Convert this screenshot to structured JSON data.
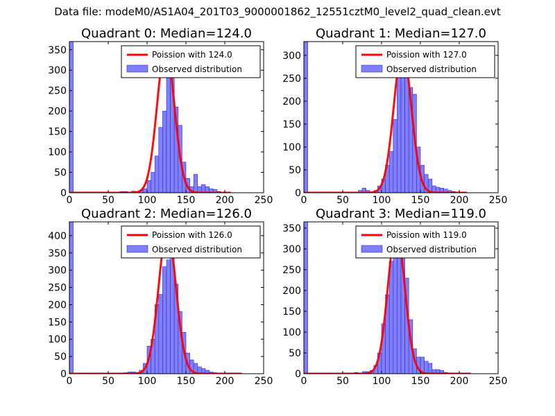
{
  "suptitle": "Data file: modeM0/AS1A04_201T03_9000001862_12551cztM0_level2_quad_clean.evt",
  "colors": {
    "bar_fill": "#8080ff",
    "bar_edge": "#2b2bcc",
    "curve": "#ff0000",
    "frame": "#000000"
  },
  "chart_data": [
    {
      "type": "bar",
      "title": "Quadrant 0: Median=124.0",
      "xlim": [
        0,
        250
      ],
      "ylim": [
        0,
        370
      ],
      "xticks": [
        0,
        50,
        100,
        150,
        200,
        250
      ],
      "yticks": [
        0,
        50,
        100,
        150,
        200,
        250,
        300,
        350
      ],
      "legend_placement": "top-right",
      "legend": [
        "Poission with 124.0",
        "Observed distribution"
      ],
      "curve": {
        "name": "Poission with 124.0",
        "mean": 124.0,
        "peak": 355,
        "range": [
          0,
          208
        ]
      },
      "bars": {
        "name": "Observed distribution",
        "bin_width": 5,
        "bins": [
          {
            "x": 0,
            "v": 370
          },
          {
            "x": 65,
            "v": 3
          },
          {
            "x": 70,
            "v": 3
          },
          {
            "x": 80,
            "v": 4
          },
          {
            "x": 85,
            "v": 3
          },
          {
            "x": 90,
            "v": 6
          },
          {
            "x": 95,
            "v": 10
          },
          {
            "x": 100,
            "v": 30
          },
          {
            "x": 105,
            "v": 50
          },
          {
            "x": 110,
            "v": 90
          },
          {
            "x": 115,
            "v": 160
          },
          {
            "x": 120,
            "v": 200
          },
          {
            "x": 125,
            "v": 290
          },
          {
            "x": 130,
            "v": 350
          },
          {
            "x": 135,
            "v": 210
          },
          {
            "x": 140,
            "v": 165
          },
          {
            "x": 145,
            "v": 75
          },
          {
            "x": 150,
            "v": 35
          },
          {
            "x": 155,
            "v": 15
          },
          {
            "x": 160,
            "v": 45
          },
          {
            "x": 165,
            "v": 15
          },
          {
            "x": 170,
            "v": 20
          },
          {
            "x": 175,
            "v": 15
          },
          {
            "x": 180,
            "v": 10
          },
          {
            "x": 185,
            "v": 8
          },
          {
            "x": 190,
            "v": 3
          }
        ]
      }
    },
    {
      "type": "bar",
      "title": "Quadrant 1: Median=127.0",
      "xlim": [
        0,
        250
      ],
      "ylim": [
        0,
        330
      ],
      "xticks": [
        0,
        50,
        100,
        150,
        200,
        250
      ],
      "yticks": [
        0,
        50,
        100,
        150,
        200,
        250,
        300
      ],
      "legend_placement": "top-right",
      "legend": [
        "Poission with 127.0",
        "Observed distribution"
      ],
      "curve": {
        "name": "Poission with 127.0",
        "mean": 127.0,
        "peak": 312,
        "range": [
          0,
          210
        ]
      },
      "bars": {
        "name": "Observed distribution",
        "bin_width": 5,
        "bins": [
          {
            "x": 0,
            "v": 330
          },
          {
            "x": 70,
            "v": 5
          },
          {
            "x": 75,
            "v": 10
          },
          {
            "x": 80,
            "v": 5
          },
          {
            "x": 85,
            "v": 2
          },
          {
            "x": 90,
            "v": 5
          },
          {
            "x": 95,
            "v": 15
          },
          {
            "x": 100,
            "v": 30
          },
          {
            "x": 105,
            "v": 60
          },
          {
            "x": 110,
            "v": 90
          },
          {
            "x": 115,
            "v": 160
          },
          {
            "x": 120,
            "v": 280
          },
          {
            "x": 125,
            "v": 290
          },
          {
            "x": 130,
            "v": 305
          },
          {
            "x": 135,
            "v": 230
          },
          {
            "x": 140,
            "v": 215
          },
          {
            "x": 145,
            "v": 100
          },
          {
            "x": 150,
            "v": 60
          },
          {
            "x": 155,
            "v": 40
          },
          {
            "x": 160,
            "v": 30
          },
          {
            "x": 165,
            "v": 15
          },
          {
            "x": 170,
            "v": 12
          },
          {
            "x": 175,
            "v": 10
          },
          {
            "x": 180,
            "v": 8
          },
          {
            "x": 185,
            "v": 5
          },
          {
            "x": 190,
            "v": 3
          }
        ]
      }
    },
    {
      "type": "bar",
      "title": "Quadrant 2: Median=126.0",
      "xlim": [
        0,
        250
      ],
      "ylim": [
        0,
        440
      ],
      "xticks": [
        0,
        50,
        100,
        150,
        200,
        250
      ],
      "yticks": [
        0,
        50,
        100,
        150,
        200,
        250,
        300,
        350,
        400
      ],
      "legend_placement": "top-right",
      "legend": [
        "Poission with 126.0",
        "Observed distribution"
      ],
      "curve": {
        "name": "Poission with 126.0",
        "mean": 126.0,
        "peak": 415,
        "range": [
          0,
          222
        ]
      },
      "bars": {
        "name": "Observed distribution",
        "bin_width": 5,
        "bins": [
          {
            "x": 0,
            "v": 440
          },
          {
            "x": 70,
            "v": 3
          },
          {
            "x": 75,
            "v": 5
          },
          {
            "x": 80,
            "v": 5
          },
          {
            "x": 85,
            "v": 4
          },
          {
            "x": 90,
            "v": 10
          },
          {
            "x": 95,
            "v": 30
          },
          {
            "x": 100,
            "v": 80
          },
          {
            "x": 105,
            "v": 100
          },
          {
            "x": 110,
            "v": 200
          },
          {
            "x": 115,
            "v": 230
          },
          {
            "x": 120,
            "v": 310
          },
          {
            "x": 125,
            "v": 330
          },
          {
            "x": 130,
            "v": 360
          },
          {
            "x": 135,
            "v": 260
          },
          {
            "x": 140,
            "v": 180
          },
          {
            "x": 145,
            "v": 120
          },
          {
            "x": 150,
            "v": 60
          },
          {
            "x": 155,
            "v": 40
          },
          {
            "x": 160,
            "v": 30
          },
          {
            "x": 165,
            "v": 20
          },
          {
            "x": 170,
            "v": 15
          },
          {
            "x": 175,
            "v": 10
          },
          {
            "x": 180,
            "v": 5
          },
          {
            "x": 185,
            "v": 3
          }
        ]
      }
    },
    {
      "type": "bar",
      "title": "Quadrant 3: Median=119.0",
      "xlim": [
        0,
        250
      ],
      "ylim": [
        0,
        365
      ],
      "xticks": [
        0,
        50,
        100,
        150,
        200,
        250
      ],
      "yticks": [
        0,
        50,
        100,
        150,
        200,
        250,
        300,
        350
      ],
      "legend_placement": "top-right",
      "legend": [
        "Poission with 119.0",
        "Observed distribution"
      ],
      "curve": {
        "name": "Poission with 119.0",
        "mean": 119.0,
        "peak": 345,
        "range": [
          0,
          215
        ]
      },
      "bars": {
        "name": "Observed distribution",
        "bin_width": 5,
        "bins": [
          {
            "x": 0,
            "v": 365
          },
          {
            "x": 65,
            "v": 3
          },
          {
            "x": 75,
            "v": 5
          },
          {
            "x": 80,
            "v": 5
          },
          {
            "x": 85,
            "v": 8
          },
          {
            "x": 90,
            "v": 20
          },
          {
            "x": 95,
            "v": 50
          },
          {
            "x": 100,
            "v": 120
          },
          {
            "x": 105,
            "v": 190
          },
          {
            "x": 110,
            "v": 270
          },
          {
            "x": 115,
            "v": 320
          },
          {
            "x": 120,
            "v": 340
          },
          {
            "x": 125,
            "v": 300
          },
          {
            "x": 130,
            "v": 230
          },
          {
            "x": 135,
            "v": 130
          },
          {
            "x": 140,
            "v": 60
          },
          {
            "x": 145,
            "v": 40
          },
          {
            "x": 150,
            "v": 40
          },
          {
            "x": 155,
            "v": 30
          },
          {
            "x": 160,
            "v": 25
          },
          {
            "x": 165,
            "v": 10
          },
          {
            "x": 170,
            "v": 10
          },
          {
            "x": 175,
            "v": 8
          },
          {
            "x": 180,
            "v": 3
          },
          {
            "x": 185,
            "v": 2
          }
        ]
      }
    }
  ]
}
